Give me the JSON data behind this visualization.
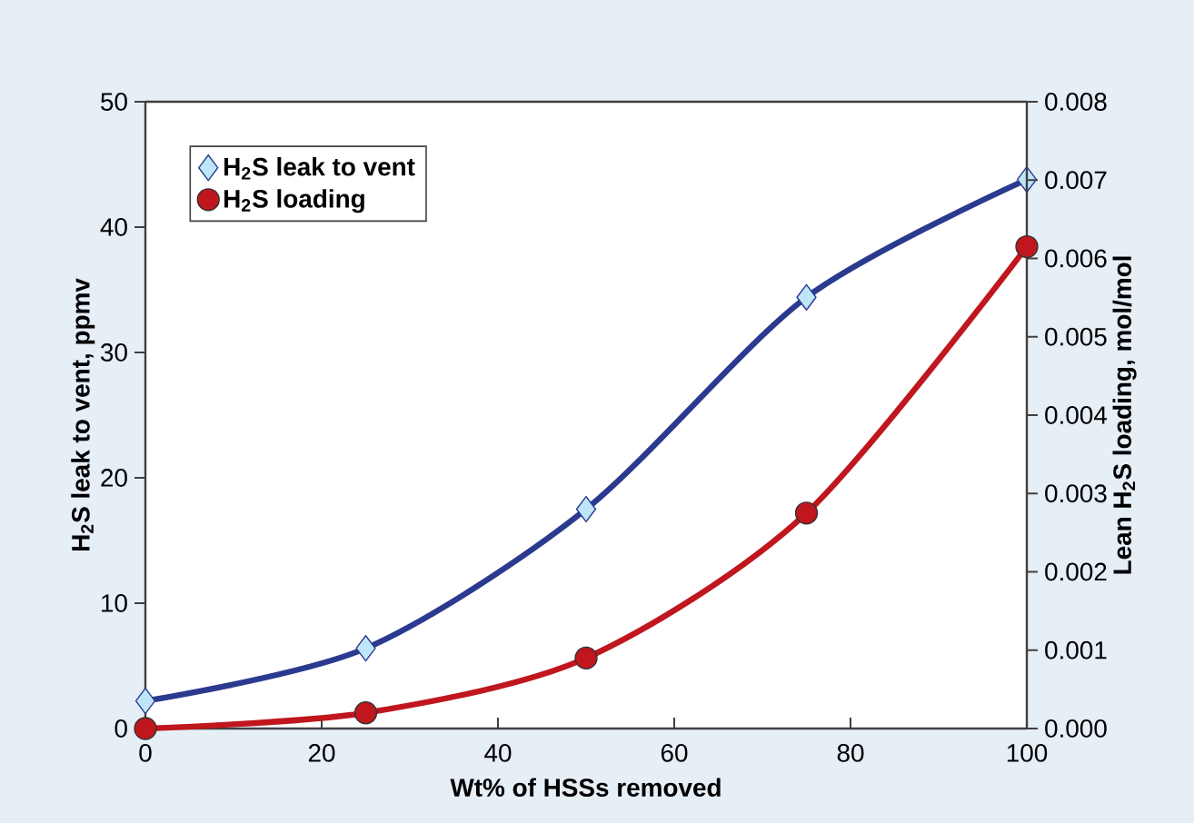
{
  "chart_data": {
    "type": "line",
    "xlabel": "Wt% of HSSs removed",
    "ylabel": "H$_{2}$S leak to vent, ppmv",
    "y2label": "Lean H$_{2}$S loading, mol/mol",
    "x": [
      0,
      25,
      50,
      75,
      100
    ],
    "series": [
      {
        "name": "H$_{2}$S leak to vent",
        "color": "#2b3a8f",
        "marker": "diamond",
        "values": [
          2.2,
          6.4,
          17.5,
          34.4,
          43.8
        ]
      },
      {
        "name": "H$_{2}$S loading",
        "color": "#c0161e",
        "marker": "circle",
        "axis": "y2",
        "values": [
          0.0,
          0.0002,
          0.0009,
          0.00275,
          0.00615
        ]
      }
    ],
    "xlim": [
      0,
      100
    ],
    "xticks": [
      0,
      20,
      40,
      60,
      80,
      100
    ],
    "ylim": [
      0,
      50
    ],
    "yticks": [
      0,
      10,
      20,
      30,
      40,
      50
    ],
    "y2lim": [
      0,
      0.008
    ],
    "y2ticks": [
      {
        "value": 0,
        "label": "0.000"
      },
      {
        "value": 0.001,
        "label": "0.001"
      },
      {
        "value": 0.002,
        "label": "0.002"
      },
      {
        "value": 0.003,
        "label": "0.003"
      },
      {
        "value": 0.004,
        "label": "0.004"
      },
      {
        "value": 0.005,
        "label": "0.005"
      },
      {
        "value": 0.006,
        "label": "0.006"
      },
      {
        "value": 0.007,
        "label": "0.007"
      },
      {
        "value": 0.008,
        "label": "0.008"
      }
    ],
    "legend": "top left"
  }
}
